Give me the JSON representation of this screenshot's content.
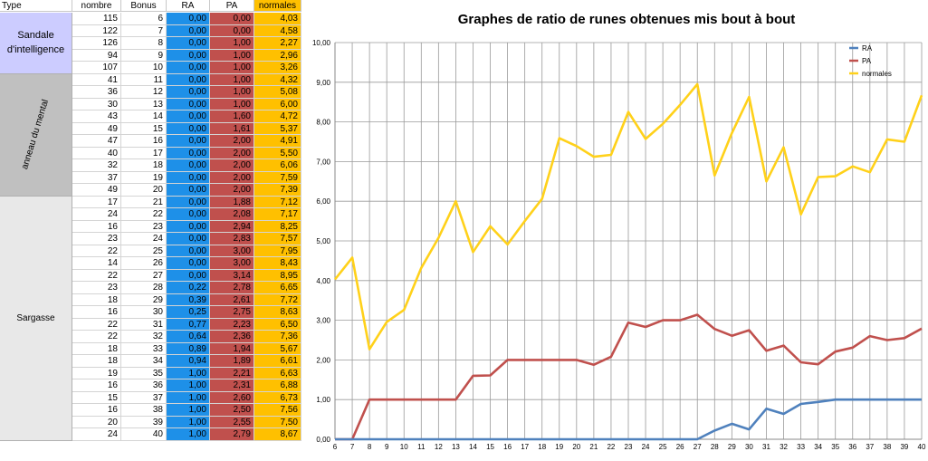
{
  "table": {
    "headers": [
      "Type",
      "nombre",
      "Bonus",
      "RA",
      "PA",
      "normales"
    ],
    "groups": [
      {
        "label": "Sandale d'intelligence",
        "rows": 5,
        "color": "#ccccff"
      },
      {
        "label": "anneau du mental",
        "rows": 10,
        "color": "#c0c0c0"
      },
      {
        "label": "Sargasse",
        "rows": 20,
        "color": "#e8e8e8"
      }
    ],
    "rows": [
      {
        "nombre": "115",
        "bonus": "6",
        "ra": "0,00",
        "pa": "0,00",
        "normales": "4,03"
      },
      {
        "nombre": "122",
        "bonus": "7",
        "ra": "0,00",
        "pa": "0,00",
        "normales": "4,58"
      },
      {
        "nombre": "126",
        "bonus": "8",
        "ra": "0,00",
        "pa": "1,00",
        "normales": "2,27"
      },
      {
        "nombre": "94",
        "bonus": "9",
        "ra": "0,00",
        "pa": "1,00",
        "normales": "2,96"
      },
      {
        "nombre": "107",
        "bonus": "10",
        "ra": "0,00",
        "pa": "1,00",
        "normales": "3,26"
      },
      {
        "nombre": "41",
        "bonus": "11",
        "ra": "0,00",
        "pa": "1,00",
        "normales": "4,32"
      },
      {
        "nombre": "36",
        "bonus": "12",
        "ra": "0,00",
        "pa": "1,00",
        "normales": "5,08"
      },
      {
        "nombre": "30",
        "bonus": "13",
        "ra": "0,00",
        "pa": "1,00",
        "normales": "6,00"
      },
      {
        "nombre": "43",
        "bonus": "14",
        "ra": "0,00",
        "pa": "1,60",
        "normales": "4,72"
      },
      {
        "nombre": "49",
        "bonus": "15",
        "ra": "0,00",
        "pa": "1,61",
        "normales": "5,37"
      },
      {
        "nombre": "47",
        "bonus": "16",
        "ra": "0,00",
        "pa": "2,00",
        "normales": "4,91"
      },
      {
        "nombre": "40",
        "bonus": "17",
        "ra": "0,00",
        "pa": "2,00",
        "normales": "5,50"
      },
      {
        "nombre": "32",
        "bonus": "18",
        "ra": "0,00",
        "pa": "2,00",
        "normales": "6,06"
      },
      {
        "nombre": "37",
        "bonus": "19",
        "ra": "0,00",
        "pa": "2,00",
        "normales": "7,59"
      },
      {
        "nombre": "49",
        "bonus": "20",
        "ra": "0,00",
        "pa": "2,00",
        "normales": "7,39"
      },
      {
        "nombre": "17",
        "bonus": "21",
        "ra": "0,00",
        "pa": "1,88",
        "normales": "7,12"
      },
      {
        "nombre": "24",
        "bonus": "22",
        "ra": "0,00",
        "pa": "2,08",
        "normales": "7,17"
      },
      {
        "nombre": "16",
        "bonus": "23",
        "ra": "0,00",
        "pa": "2,94",
        "normales": "8,25"
      },
      {
        "nombre": "23",
        "bonus": "24",
        "ra": "0,00",
        "pa": "2,83",
        "normales": "7,57"
      },
      {
        "nombre": "22",
        "bonus": "25",
        "ra": "0,00",
        "pa": "3,00",
        "normales": "7,95"
      },
      {
        "nombre": "14",
        "bonus": "26",
        "ra": "0,00",
        "pa": "3,00",
        "normales": "8,43"
      },
      {
        "nombre": "22",
        "bonus": "27",
        "ra": "0,00",
        "pa": "3,14",
        "normales": "8,95"
      },
      {
        "nombre": "23",
        "bonus": "28",
        "ra": "0,22",
        "pa": "2,78",
        "normales": "6,65"
      },
      {
        "nombre": "18",
        "bonus": "29",
        "ra": "0,39",
        "pa": "2,61",
        "normales": "7,72"
      },
      {
        "nombre": "16",
        "bonus": "30",
        "ra": "0,25",
        "pa": "2,75",
        "normales": "8,63"
      },
      {
        "nombre": "22",
        "bonus": "31",
        "ra": "0,77",
        "pa": "2,23",
        "normales": "6,50"
      },
      {
        "nombre": "22",
        "bonus": "32",
        "ra": "0,64",
        "pa": "2,36",
        "normales": "7,36"
      },
      {
        "nombre": "18",
        "bonus": "33",
        "ra": "0,89",
        "pa": "1,94",
        "normales": "5,67"
      },
      {
        "nombre": "18",
        "bonus": "34",
        "ra": "0,94",
        "pa": "1,89",
        "normales": "6,61"
      },
      {
        "nombre": "19",
        "bonus": "35",
        "ra": "1,00",
        "pa": "2,21",
        "normales": "6,63"
      },
      {
        "nombre": "16",
        "bonus": "36",
        "ra": "1,00",
        "pa": "2,31",
        "normales": "6,88"
      },
      {
        "nombre": "15",
        "bonus": "37",
        "ra": "1,00",
        "pa": "2,60",
        "normales": "6,73"
      },
      {
        "nombre": "16",
        "bonus": "38",
        "ra": "1,00",
        "pa": "2,50",
        "normales": "7,56"
      },
      {
        "nombre": "20",
        "bonus": "39",
        "ra": "1,00",
        "pa": "2,55",
        "normales": "7,50"
      },
      {
        "nombre": "24",
        "bonus": "40",
        "ra": "1,00",
        "pa": "2,79",
        "normales": "8,67"
      }
    ]
  },
  "chart_data": {
    "type": "line",
    "title": "Graphes de ratio de runes obtenues mis bout à bout",
    "x": [
      6,
      7,
      8,
      9,
      10,
      11,
      12,
      13,
      14,
      15,
      16,
      17,
      18,
      19,
      20,
      21,
      22,
      23,
      24,
      25,
      26,
      27,
      28,
      29,
      30,
      31,
      32,
      33,
      34,
      35,
      36,
      37,
      38,
      39,
      40
    ],
    "ylim": [
      0,
      10
    ],
    "yticks": [
      "0,00",
      "1,00",
      "2,00",
      "3,00",
      "4,00",
      "5,00",
      "6,00",
      "7,00",
      "8,00",
      "9,00",
      "10,00"
    ],
    "grid": true,
    "legend_position": "top-right",
    "series": [
      {
        "name": "RA",
        "color": "#4f81bd",
        "values": [
          0,
          0,
          0,
          0,
          0,
          0,
          0,
          0,
          0,
          0,
          0,
          0,
          0,
          0,
          0,
          0,
          0,
          0,
          0,
          0,
          0,
          0,
          0.22,
          0.39,
          0.25,
          0.77,
          0.64,
          0.89,
          0.94,
          1,
          1,
          1,
          1,
          1,
          1
        ]
      },
      {
        "name": "PA",
        "color": "#c0504d",
        "values": [
          0,
          0,
          1,
          1,
          1,
          1,
          1,
          1,
          1.6,
          1.61,
          2,
          2,
          2,
          2,
          2,
          1.88,
          2.08,
          2.94,
          2.83,
          3,
          3,
          3.14,
          2.78,
          2.61,
          2.75,
          2.23,
          2.36,
          1.94,
          1.89,
          2.21,
          2.31,
          2.6,
          2.5,
          2.55,
          2.79
        ]
      },
      {
        "name": "normales",
        "color": "#ffd11a",
        "values": [
          4.03,
          4.58,
          2.27,
          2.96,
          3.26,
          4.32,
          5.08,
          6,
          4.72,
          5.37,
          4.91,
          5.5,
          6.06,
          7.59,
          7.39,
          7.12,
          7.17,
          8.25,
          7.57,
          7.95,
          8.43,
          8.95,
          6.65,
          7.72,
          8.63,
          6.5,
          7.36,
          5.67,
          6.61,
          6.63,
          6.88,
          6.73,
          7.56,
          7.5,
          8.67
        ]
      }
    ]
  }
}
